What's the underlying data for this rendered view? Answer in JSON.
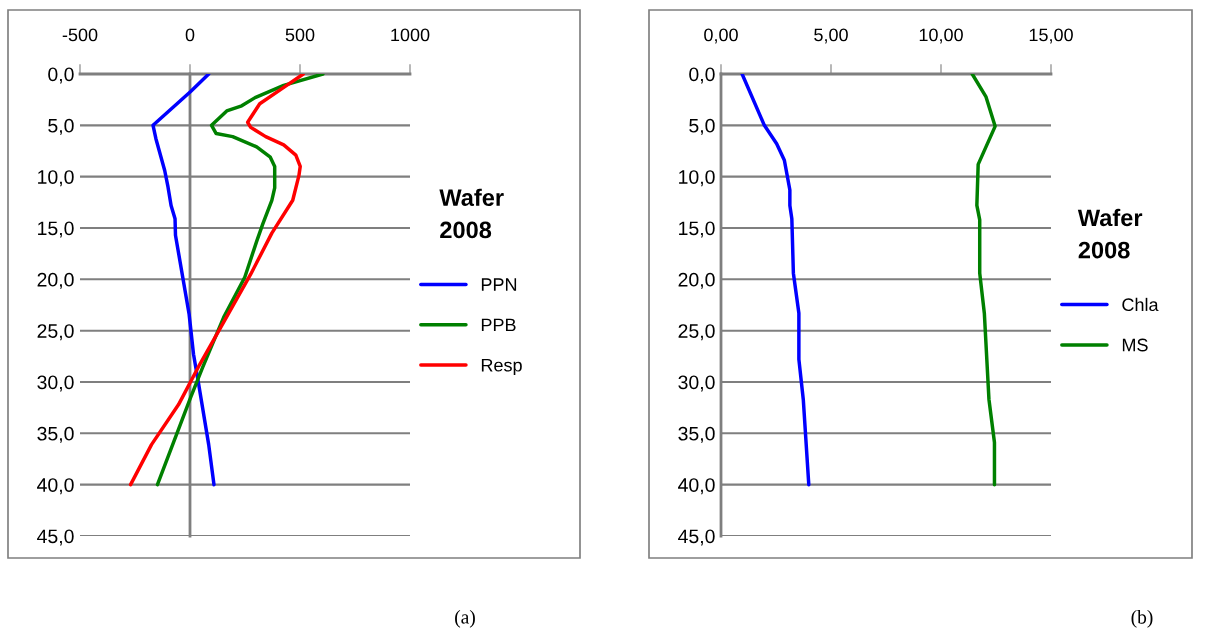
{
  "chart_data": [
    {
      "type": "line",
      "legend_title": "Wafer\n2008",
      "legend": "right",
      "grid": "y",
      "annotations": [
        "(a)"
      ],
      "xlim": [
        -500,
        1000
      ],
      "xticks": [
        {
          "value": -500,
          "label": "-500"
        },
        0,
        500,
        1000
      ],
      "ylim": [
        45,
        0
      ],
      "yticks": [
        {
          "value": 0,
          "label": "0,0"
        },
        {
          "value": 5,
          "label": "5,0"
        },
        {
          "value": 10,
          "label": "10,0"
        },
        {
          "value": 15,
          "label": "15,0"
        },
        {
          "value": 20,
          "label": "20,0"
        },
        {
          "value": 25,
          "label": "25,0"
        },
        {
          "value": 30,
          "label": "30,0"
        },
        {
          "value": 35,
          "label": "35,0"
        },
        {
          "value": 40,
          "label": "40,0"
        },
        {
          "value": 45,
          "label": "45,0"
        }
      ],
      "series": [
        {
          "name": "PPN",
          "color": "#0000ff",
          "x": [
            85,
            3,
            -168,
            -155,
            -115,
            -100,
            -86,
            -68,
            -66,
            -4,
            16,
            37,
            85,
            109
          ],
          "values": [
            0,
            1.7,
            5.0,
            6.3,
            9.4,
            11.0,
            12.8,
            14.1,
            15.7,
            23.4,
            27.3,
            29.9,
            36.1,
            40
          ]
        },
        {
          "name": "PPB",
          "color": "#008000",
          "x": [
            604,
            426,
            296,
            235,
            167,
            98,
            119,
            194,
            303,
            365,
            385,
            385,
            372,
            331,
            303,
            249,
            153,
            57,
            3,
            -148
          ],
          "values": [
            0,
            1.1,
            2.3,
            3.1,
            3.6,
            5.0,
            5.8,
            6.1,
            7.1,
            8.1,
            9.0,
            11.1,
            12.3,
            14.6,
            16.3,
            19.8,
            23.7,
            28.6,
            31.5,
            40
          ]
        },
        {
          "name": "Resp",
          "color": "#ff0000",
          "x": [
            515,
            413,
            317,
            262,
            276,
            344,
            426,
            481,
            501,
            495,
            467,
            372,
            276,
            139,
            44,
            -52,
            -175,
            -270
          ],
          "values": [
            0,
            1.5,
            2.9,
            4.7,
            5.2,
            6.1,
            6.9,
            7.9,
            9.0,
            9.9,
            12.3,
            15.5,
            19.5,
            24.7,
            28.3,
            32.2,
            36.1,
            40
          ]
        }
      ]
    },
    {
      "type": "line",
      "legend_title": "Wafer\n2008",
      "legend": "right",
      "grid": "y",
      "annotations": [
        "(b)"
      ],
      "xlim": [
        0,
        15
      ],
      "xticks": [
        {
          "value": 0,
          "label": "0,00"
        },
        {
          "value": 5,
          "label": "5,00"
        },
        {
          "value": 10,
          "label": "10,00"
        },
        {
          "value": 15,
          "label": "15,00"
        }
      ],
      "ylim": [
        45,
        0
      ],
      "yticks": [
        {
          "value": 0,
          "label": "0,0"
        },
        {
          "value": 5,
          "label": "5,0"
        },
        {
          "value": 10,
          "label": "10,0"
        },
        {
          "value": 15,
          "label": "15,0"
        },
        {
          "value": 20,
          "label": "20,0"
        },
        {
          "value": 25,
          "label": "25,0"
        },
        {
          "value": 30,
          "label": "30,0"
        },
        {
          "value": 35,
          "label": "35,0"
        },
        {
          "value": 40,
          "label": "40,0"
        },
        {
          "value": 45,
          "label": "45,0"
        }
      ],
      "series": [
        {
          "name": "Chla",
          "color": "#0000ff",
          "x": [
            0.96,
            1.97,
            2.53,
            2.88,
            3.13,
            3.13,
            3.22,
            3.29,
            3.54,
            3.54,
            3.74,
            3.99
          ],
          "values": [
            0,
            5.0,
            6.8,
            8.4,
            11.3,
            12.8,
            14.1,
            19.4,
            23.3,
            27.8,
            31.7,
            40
          ]
        },
        {
          "name": "MS",
          "color": "#008000",
          "x": [
            11.42,
            12.04,
            12.46,
            11.69,
            11.63,
            11.76,
            11.76,
            11.97,
            12.18,
            12.43,
            12.43
          ],
          "values": [
            0,
            2.2,
            5.1,
            8.8,
            12.8,
            14.2,
            19.4,
            23.3,
            31.7,
            35.9,
            40
          ]
        }
      ]
    }
  ]
}
